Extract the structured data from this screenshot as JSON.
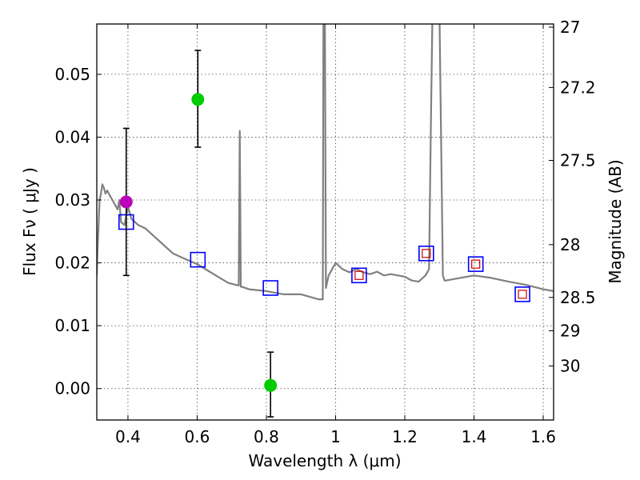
{
  "chart_data": {
    "type": "scatter",
    "xlabel": "Wavelength  λ (μm)",
    "ylabel": "Flux  Fν  ( μJy )",
    "ylabel_right": "Magnitude (AB)",
    "xlim": [
      0.31,
      1.63
    ],
    "ylim": [
      -0.005,
      0.058
    ],
    "grid": true,
    "x_ticks": [
      0.4,
      0.6,
      0.8,
      1.0,
      1.2,
      1.4,
      1.6
    ],
    "x_tick_labels": [
      "0.4",
      "0.6",
      "0.8",
      "1",
      "1.2",
      "1.4",
      "1.6"
    ],
    "y_ticks": [
      0.0,
      0.01,
      0.02,
      0.03,
      0.04,
      0.05
    ],
    "y_tick_labels": [
      "0.00",
      "0.01",
      "0.02",
      "0.03",
      "0.04",
      "0.05"
    ],
    "right_axis_ticks": [
      {
        "flux": 0.0575,
        "label": "27"
      },
      {
        "flux": 0.0479,
        "label": "27.2"
      },
      {
        "flux": 0.0363,
        "label": "27.5"
      },
      {
        "flux": 0.0229,
        "label": "28"
      },
      {
        "flux": 0.0145,
        "label": "28.5"
      },
      {
        "flux": 0.0092,
        "label": "29"
      },
      {
        "flux": 0.0036,
        "label": "30"
      }
    ],
    "series": [
      {
        "kind": "sed_model_line",
        "color": "#808080",
        "x": [
          0.31,
          0.312,
          0.318,
          0.322,
          0.326,
          0.33,
          0.335,
          0.34,
          0.345,
          0.35,
          0.36,
          0.37,
          0.375,
          0.38,
          0.39,
          0.4,
          0.41,
          0.43,
          0.45,
          0.47,
          0.49,
          0.51,
          0.53,
          0.55,
          0.57,
          0.6,
          0.63,
          0.66,
          0.69,
          0.72,
          0.723,
          0.726,
          0.729,
          0.75,
          0.8,
          0.85,
          0.9,
          0.95,
          0.963,
          0.965,
          0.969,
          0.972,
          0.976,
          0.98,
          1.0,
          1.02,
          1.04,
          1.06,
          1.08,
          1.1,
          1.12,
          1.14,
          1.16,
          1.18,
          1.2,
          1.22,
          1.24,
          1.25,
          1.26,
          1.27,
          1.275,
          1.28,
          1.285,
          1.29,
          1.3,
          1.31,
          1.315,
          1.32,
          1.35,
          1.4,
          1.45,
          1.5,
          1.55,
          1.6,
          1.63
        ],
        "y": [
          0.018,
          0.022,
          0.03,
          0.031,
          0.0325,
          0.032,
          0.031,
          0.0315,
          0.031,
          0.0305,
          0.0295,
          0.0285,
          0.03,
          0.0265,
          0.026,
          0.029,
          0.027,
          0.026,
          0.0255,
          0.0245,
          0.0235,
          0.0225,
          0.0215,
          0.021,
          0.0205,
          0.0198,
          0.0188,
          0.0178,
          0.0168,
          0.0164,
          0.041,
          0.0162,
          0.0162,
          0.0158,
          0.0155,
          0.015,
          0.015,
          0.0142,
          0.0142,
          0.06,
          0.06,
          0.016,
          0.017,
          0.018,
          0.02,
          0.019,
          0.0185,
          0.019,
          0.0185,
          0.0182,
          0.0186,
          0.018,
          0.0182,
          0.018,
          0.0178,
          0.0172,
          0.017,
          0.0175,
          0.018,
          0.019,
          0.04,
          0.06,
          0.06,
          0.06,
          0.06,
          0.018,
          0.0172,
          0.0172,
          0.0175,
          0.018,
          0.0176,
          0.017,
          0.0165,
          0.0158,
          0.0155
        ]
      },
      {
        "kind": "model_photometry",
        "marker": "open-square",
        "color": "#0000ff",
        "x": [
          0.395,
          0.602,
          0.812,
          1.068,
          1.262,
          1.405,
          1.54
        ],
        "y": [
          0.0265,
          0.0205,
          0.016,
          0.018,
          0.0215,
          0.0198,
          0.015
        ]
      },
      {
        "kind": "observed_inner",
        "marker": "open-square",
        "color": "#cc0000",
        "x": [
          1.068,
          1.262,
          1.405,
          1.54
        ],
        "y": [
          0.018,
          0.0215,
          0.0198,
          0.015
        ]
      },
      {
        "kind": "detections",
        "marker": "filled-circle",
        "color": "#00cc00",
        "x": [
          0.602,
          0.812
        ],
        "y": [
          0.046,
          0.0005
        ],
        "yerr_low": [
          0.0384,
          -0.0045
        ],
        "yerr_high": [
          0.0538,
          0.0058
        ]
      },
      {
        "kind": "detection_magenta",
        "marker": "filled-circle",
        "color": "#bb00bb",
        "x": [
          0.395
        ],
        "y": [
          0.0297
        ],
        "yerr_low": [
          0.018
        ],
        "yerr_high": [
          0.0414
        ]
      }
    ]
  }
}
